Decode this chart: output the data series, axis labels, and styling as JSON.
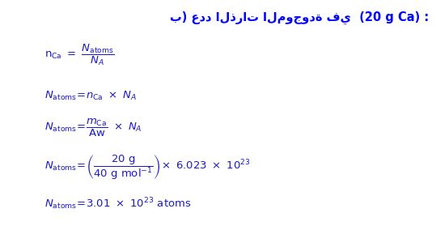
{
  "bg_color": "#ffffff",
  "title_color": "#0000FF",
  "formula_color": "#1a1acd",
  "figsize": [
    5.39,
    2.84
  ],
  "dpi": 100,
  "title_arabic": "ب) عدد الذرات الموجودة في  (20 g Ca) :"
}
